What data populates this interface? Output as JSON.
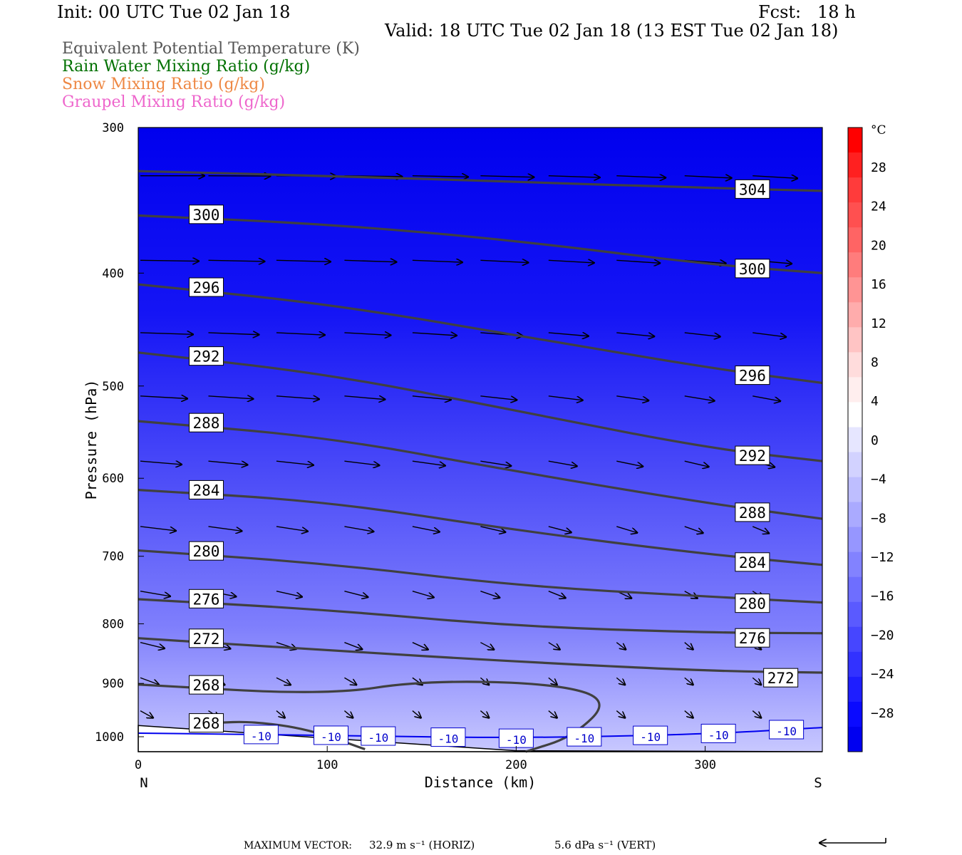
{
  "header": {
    "init": "Init: 00 UTC Tue 02 Jan 18",
    "fcst": "Fcst:   18 h",
    "valid": "Valid: 18 UTC Tue 02 Jan 18 (13 EST Tue 02 Jan 18)"
  },
  "legend": [
    {
      "text": "Equivalent Potential Temperature (K)",
      "color": "#555555"
    },
    {
      "text": "Rain Water Mixing Ratio (g/kg)",
      "color": "#007000"
    },
    {
      "text": "Snow Mixing Ratio (g/kg)",
      "color": "#ee8844"
    },
    {
      "text": "Graupel Mixing Ratio (g/kg)",
      "color": "#ee66cc"
    }
  ],
  "chart_data": {
    "type": "cross-section",
    "xlabel": "Distance (km)",
    "ylabel": "Pressure (hPa)",
    "xlim": [
      0,
      362
    ],
    "ylim": [
      1030,
      300
    ],
    "y_scale": "log",
    "x_ticks": [
      0,
      100,
      200,
      300
    ],
    "y_ticks": [
      300,
      400,
      500,
      600,
      700,
      800,
      900,
      1000
    ],
    "x_endpoints": {
      "left": "N",
      "right": "S"
    },
    "theta_e_contours": [
      {
        "label": "304",
        "points": [
          [
            0,
            327
          ],
          [
            100,
            330
          ],
          [
            200,
            334
          ],
          [
            300,
            338
          ],
          [
            362,
            340
          ]
        ]
      },
      {
        "label": "300",
        "points": [
          [
            0,
            357
          ],
          [
            100,
            363
          ],
          [
            200,
            375
          ],
          [
            300,
            393
          ],
          [
            362,
            400
          ]
        ]
      },
      {
        "label": "296",
        "points": [
          [
            0,
            409
          ],
          [
            100,
            425
          ],
          [
            200,
            452
          ],
          [
            300,
            482
          ],
          [
            362,
            497
          ]
        ]
      },
      {
        "label": "292",
        "points": [
          [
            0,
            468
          ],
          [
            100,
            488
          ],
          [
            200,
            525
          ],
          [
            300,
            565
          ],
          [
            362,
            580
          ]
        ]
      },
      {
        "label": "288",
        "points": [
          [
            0,
            536
          ],
          [
            100,
            553
          ],
          [
            200,
            592
          ],
          [
            300,
            630
          ],
          [
            362,
            650
          ]
        ]
      },
      {
        "label": "284",
        "points": [
          [
            0,
            614
          ],
          [
            100,
            628
          ],
          [
            200,
            665
          ],
          [
            300,
            697
          ],
          [
            362,
            712
          ]
        ]
      },
      {
        "label": "280",
        "points": [
          [
            0,
            692
          ],
          [
            100,
            710
          ],
          [
            200,
            742
          ],
          [
            300,
            758
          ],
          [
            362,
            767
          ]
        ]
      },
      {
        "label": "276",
        "points": [
          [
            0,
            762
          ],
          [
            100,
            778
          ],
          [
            200,
            804
          ],
          [
            300,
            814
          ],
          [
            362,
            815
          ]
        ]
      },
      {
        "label": "272",
        "points": [
          [
            0,
            823
          ],
          [
            100,
            843
          ],
          [
            200,
            862
          ],
          [
            300,
            878
          ],
          [
            362,
            881
          ]
        ]
      },
      {
        "label": "268",
        "points": [
          [
            0,
            902
          ],
          [
            100,
            921
          ],
          [
            150,
            895
          ],
          [
            220,
            900
          ],
          [
            250,
            930
          ],
          [
            230,
            1000
          ],
          [
            205,
            1030
          ]
        ]
      },
      {
        "label": "268",
        "points": [
          [
            40,
            973
          ],
          [
            60,
            970
          ],
          [
            90,
            985
          ],
          [
            120,
            1025
          ]
        ]
      }
    ],
    "temperature_contour": {
      "label": "-10",
      "points": [
        [
          0,
          993
        ],
        [
          100,
          997
        ],
        [
          200,
          1003
        ],
        [
          300,
          995
        ],
        [
          362,
          982
        ]
      ]
    },
    "temperature_labels_km": [
      65,
      102,
      127,
      164,
      200,
      236,
      271,
      307,
      343
    ],
    "colorbar": {
      "unit": "°C",
      "ticks": [
        28,
        24,
        20,
        16,
        12,
        8,
        4,
        0,
        -4,
        -8,
        -12,
        -16,
        -20,
        -24,
        -28
      ],
      "colors_top_to_bottom": [
        "#ff0000",
        "#ff2020",
        "#ff3b3b",
        "#ff5050",
        "#ff6464",
        "#ff7c7c",
        "#ff9494",
        "#ffacac",
        "#ffc4c4",
        "#ffdcdc",
        "#ffeeee",
        "#ffffff",
        "#e6e6ff",
        "#d2d2ff",
        "#bebeff",
        "#aaaaff",
        "#9696ff",
        "#8282ff",
        "#6e6eff",
        "#5a5aff",
        "#4646ff",
        "#3232ff",
        "#1e1eff",
        "#0a0aff",
        "#0000f0"
      ]
    },
    "max_vector": {
      "label": "MAXIMUM VECTOR:",
      "horiz": "32.9 m s⁻¹ (HORIZ)",
      "vert": "5.6 dPa s⁻¹ (VERT)"
    }
  },
  "colors": {
    "background_top": "#0000ee",
    "background_bottom": "#c8c8ff",
    "contour": "#404040",
    "temp_contour": "#0000ee"
  }
}
